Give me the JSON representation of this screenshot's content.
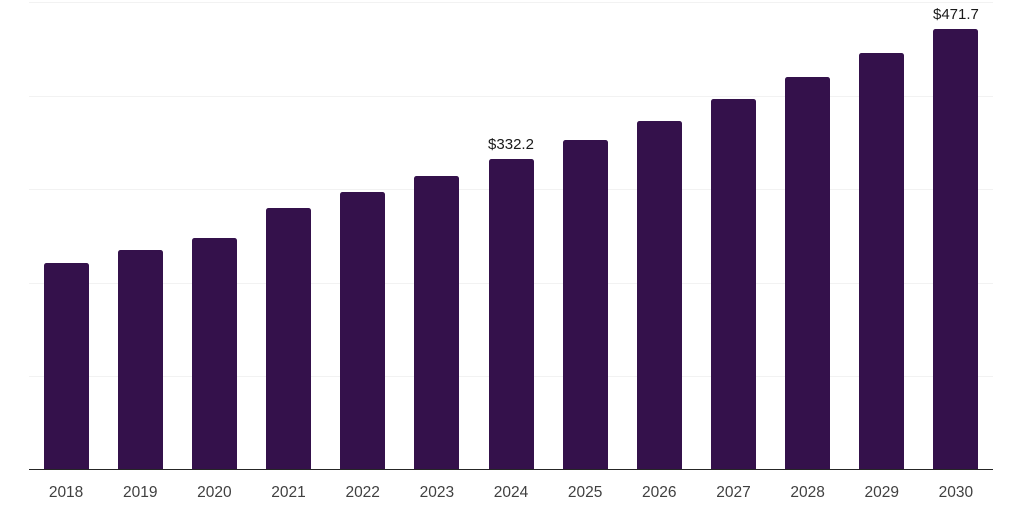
{
  "chart_data": {
    "type": "bar",
    "title": "",
    "xlabel": "",
    "ylabel": "",
    "categories": [
      "2018",
      "2019",
      "2020",
      "2021",
      "2022",
      "2023",
      "2024",
      "2025",
      "2026",
      "2027",
      "2028",
      "2029",
      "2030"
    ],
    "values": [
      221.1,
      234.9,
      247.8,
      279.5,
      296.5,
      314.0,
      332.2,
      352.3,
      373.0,
      396.5,
      420.3,
      445.6,
      471.7
    ],
    "data_labels": {
      "2024": "$332.2",
      "2030": "$471.7"
    },
    "ylim": [
      0,
      500
    ],
    "gridline_values": [
      100,
      200,
      300,
      400,
      500
    ],
    "grid": "horizontal",
    "legend": "none",
    "colors": {
      "bar": "#34114b",
      "gridline": "#f2f2f2",
      "axis": "#262626",
      "tick_label": "#404040",
      "data_label": "#1a1a1a",
      "background": "#ffffff"
    }
  }
}
